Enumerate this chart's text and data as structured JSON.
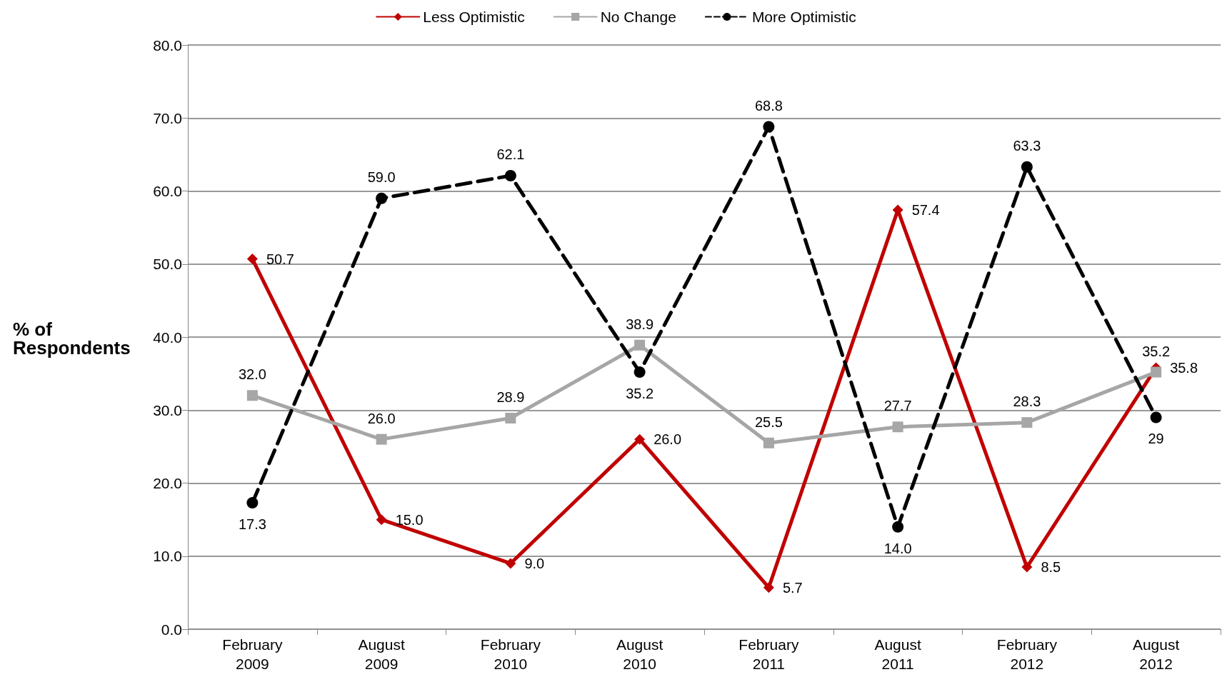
{
  "chart_data": {
    "type": "line",
    "ylabel": "% of Respondents",
    "categories": [
      "February 2009",
      "August 2009",
      "February 2010",
      "August 2010",
      "February 2011",
      "August 2011",
      "February 2012",
      "August 2012"
    ],
    "series": [
      {
        "name": "Less Optimistic",
        "color": "#c00000",
        "marker": "diamond",
        "line_style": "solid",
        "values": [
          50.7,
          15.0,
          9.0,
          26.0,
          5.7,
          57.4,
          8.5,
          35.8
        ],
        "value_labels": [
          "50.7",
          "15.0",
          "9.0",
          "26.0",
          "5.7",
          "57.4",
          "8.5",
          "35.8"
        ]
      },
      {
        "name": "No Change",
        "color": "#a6a6a6",
        "marker": "square",
        "line_style": "solid",
        "values": [
          32.0,
          26.0,
          28.9,
          38.9,
          25.5,
          27.7,
          28.3,
          35.2
        ],
        "value_labels": [
          "32.0",
          "26.0",
          "28.9",
          "38.9",
          "25.5",
          "27.7",
          "28.3",
          "35.2"
        ]
      },
      {
        "name": "More Optimistic",
        "color": "#000000",
        "marker": "circle",
        "line_style": "dashed",
        "values": [
          17.3,
          59.0,
          62.1,
          35.2,
          68.8,
          14.0,
          63.3,
          29
        ],
        "value_labels": [
          "17.3",
          "59.0",
          "62.1",
          "35.2",
          "68.8",
          "14.0",
          "63.3",
          "29"
        ]
      }
    ],
    "ylim": [
      0,
      80
    ],
    "yticks": [
      {
        "value": 0,
        "label": "0.0"
      },
      {
        "value": 10,
        "label": "10.0"
      },
      {
        "value": 20,
        "label": "20.0"
      },
      {
        "value": 30,
        "label": "30.0"
      },
      {
        "value": 40,
        "label": "40.0"
      },
      {
        "value": 50,
        "label": "50.0"
      },
      {
        "value": 60,
        "label": "60.0"
      },
      {
        "value": 70,
        "label": "70.0"
      },
      {
        "value": 80,
        "label": "80.0"
      }
    ],
    "grid": "y",
    "legend": "top"
  }
}
